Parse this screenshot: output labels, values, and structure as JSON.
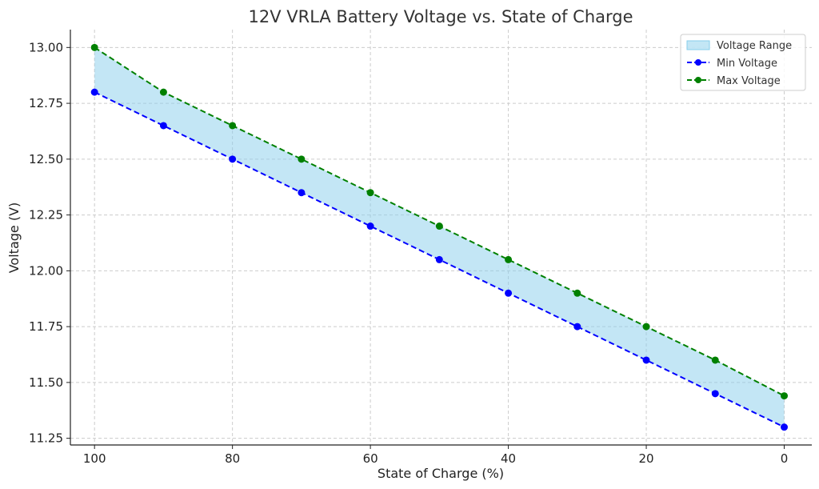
{
  "chart_data": {
    "type": "line",
    "title": "12V VRLA Battery Voltage vs. State of Charge",
    "xlabel": "State of Charge (%)",
    "ylabel": "Voltage (V)",
    "x": [
      100,
      90,
      80,
      70,
      60,
      50,
      40,
      30,
      20,
      10,
      0
    ],
    "xlim": [
      103.5,
      -4
    ],
    "ylim": [
      11.22,
      13.08
    ],
    "x_ticks": [
      100,
      80,
      60,
      40,
      20,
      0
    ],
    "y_ticks": [
      11.25,
      11.5,
      11.75,
      12.0,
      12.25,
      12.5,
      12.75,
      13.0
    ],
    "x_tick_labels": [
      "100",
      "80",
      "60",
      "40",
      "20",
      "0"
    ],
    "y_tick_labels": [
      "11.25",
      "11.50",
      "11.75",
      "12.00",
      "12.25",
      "12.50",
      "12.75",
      "13.00"
    ],
    "x_axis_reversed": true,
    "grid": true,
    "legend_placement": "top-right",
    "band": {
      "name": "Voltage Range",
      "color": "#87ceeb",
      "between": [
        "Min Voltage",
        "Max Voltage"
      ]
    },
    "series": [
      {
        "name": "Min Voltage",
        "color": "#0000ff",
        "style": "dashed-marker",
        "values": [
          12.8,
          12.65,
          12.5,
          12.35,
          12.2,
          12.05,
          11.9,
          11.75,
          11.6,
          11.45,
          11.3
        ]
      },
      {
        "name": "Max Voltage",
        "color": "#008000",
        "style": "dashed-marker",
        "values": [
          13.0,
          12.8,
          12.65,
          12.5,
          12.35,
          12.2,
          12.05,
          11.9,
          11.75,
          11.6,
          11.44
        ]
      }
    ]
  }
}
